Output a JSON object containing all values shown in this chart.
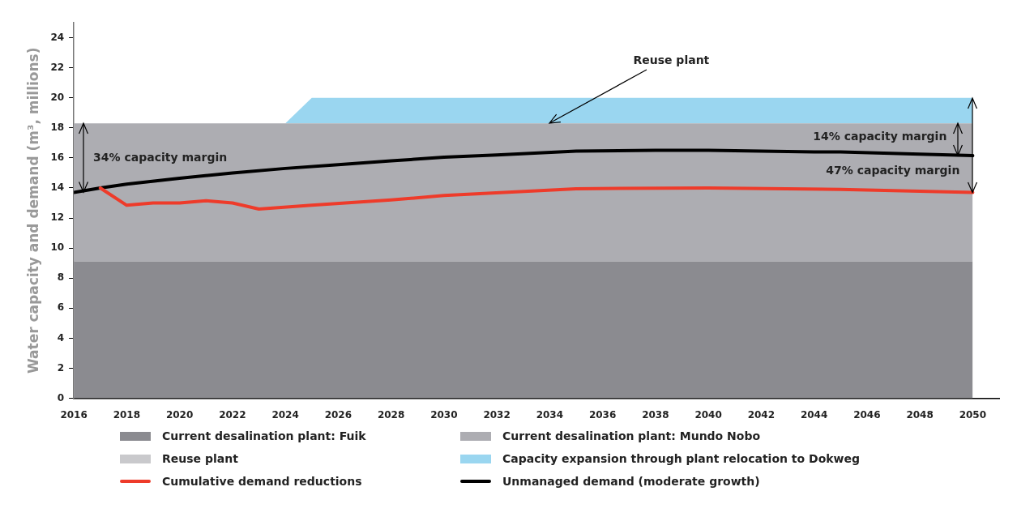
{
  "chart_data": {
    "type": "area",
    "ylabel": "Water capacity and demand (m³, millions)",
    "x": [
      2016,
      2024,
      2025,
      2050
    ],
    "stacked": true,
    "series": [
      {
        "name": "Current desalination plant: Fuik",
        "color": "#8b8b90",
        "values": [
          9.1,
          9.1,
          9.1,
          9.1
        ]
      },
      {
        "name": "Current desalination plant: Mundo Nobo",
        "color": "#adadb2",
        "values": [
          9.2,
          9.2,
          9.2,
          9.2
        ]
      },
      {
        "name": "Reuse plant",
        "color": "#c9c9cc",
        "values": [
          null,
          null,
          null,
          null
        ]
      },
      {
        "name": "Capacity expansion through plant relocation to Dokweg",
        "color": "#9ad6f0",
        "values": [
          null,
          0,
          1.7,
          1.7
        ]
      },
      {
        "name": "Cumulative demand reductions",
        "type": "line",
        "color": "#ee3b2a",
        "x": [
          2017,
          2018,
          2019,
          2020,
          2021,
          2022,
          2023,
          2025,
          2028,
          2030,
          2035,
          2040,
          2045,
          2050
        ],
        "values": [
          14.0,
          12.85,
          13.0,
          13.0,
          13.15,
          13.0,
          12.6,
          12.85,
          13.2,
          13.5,
          13.95,
          14.0,
          13.9,
          13.7
        ]
      },
      {
        "name": "Unmanaged demand (moderate growth)",
        "type": "line",
        "color": "#000000",
        "x": [
          2016,
          2017,
          2018,
          2020,
          2022,
          2024,
          2026,
          2028,
          2030,
          2032,
          2035,
          2038,
          2040,
          2042,
          2044,
          2045,
          2048,
          2050
        ],
        "values": [
          13.7,
          14.0,
          14.25,
          14.65,
          15.0,
          15.3,
          15.55,
          15.8,
          16.05,
          16.2,
          16.45,
          16.5,
          16.5,
          16.45,
          16.4,
          16.4,
          16.25,
          16.15
        ]
      }
    ],
    "xlim": [
      2016,
      2051
    ],
    "xticks": [
      2016,
      2018,
      2020,
      2022,
      2024,
      2026,
      2028,
      2030,
      2032,
      2034,
      2036,
      2038,
      2040,
      2042,
      2044,
      2046,
      2048,
      2050
    ],
    "ylim": [
      0,
      25
    ],
    "yticks": [
      0,
      2,
      4,
      6,
      8,
      10,
      12,
      14,
      16,
      18,
      20,
      22,
      24
    ],
    "grid": false,
    "legend": "bottom",
    "annotations": [
      {
        "text": "Reuse plant",
        "x": 2034,
        "y": 18.3
      },
      {
        "text": "34% capacity margin",
        "x": 2016,
        "y": 16
      },
      {
        "text": "14% capacity margin",
        "x": 2050,
        "y": 17.4
      },
      {
        "text": "47% capacity margin",
        "x": 2050,
        "y": 15.1
      }
    ]
  }
}
